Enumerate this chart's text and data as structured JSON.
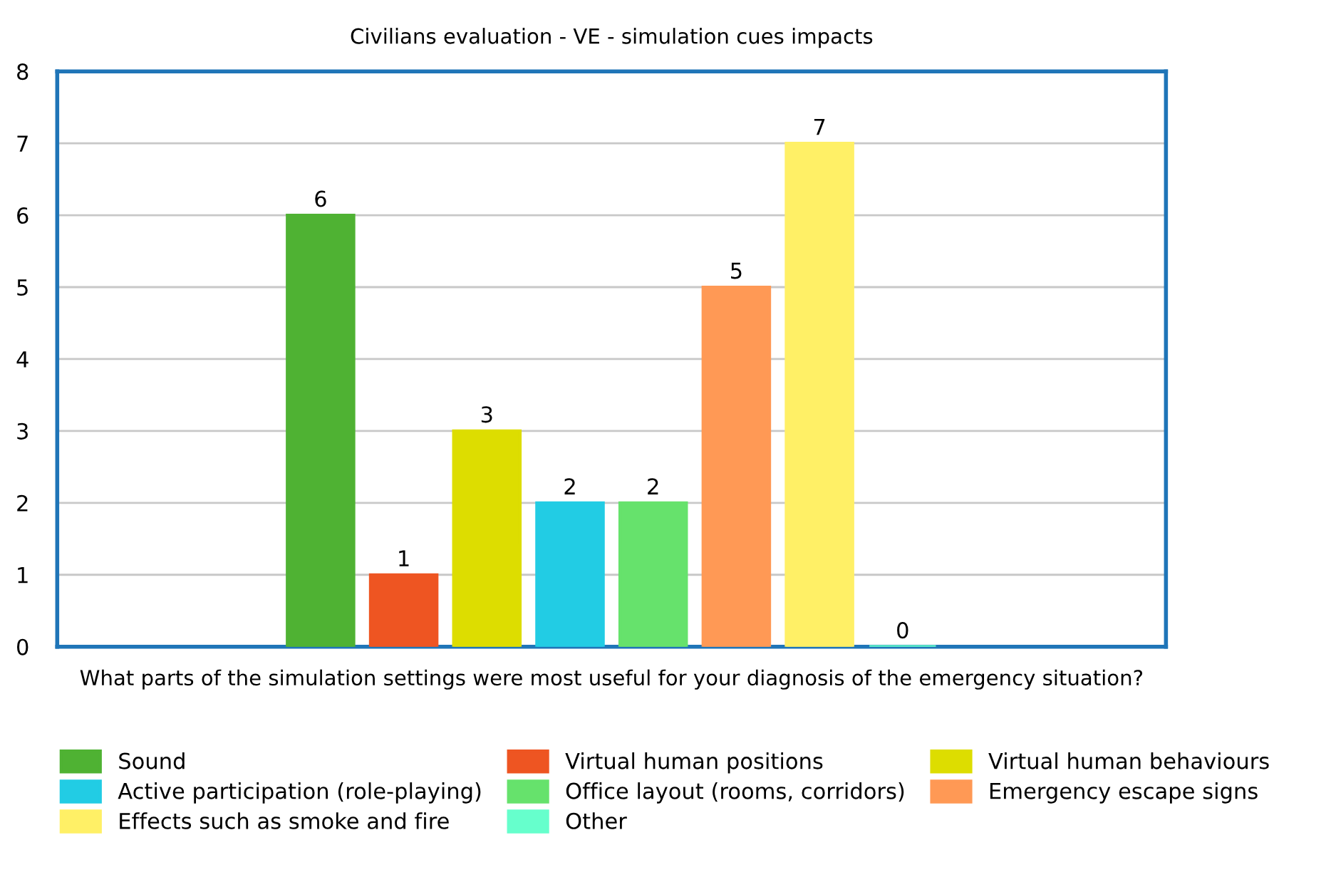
{
  "chart_data": {
    "type": "bar",
    "title": "Civilians evaluation - VE - simulation cues impacts",
    "xlabel": "What parts of the simulation settings were most useful for your diagnosis of the emergency situation?",
    "categories": [
      null
    ],
    "series": [
      {
        "name": "Sound",
        "color": "#4fb233",
        "values": [
          6
        ]
      },
      {
        "name": "Virtual human positions",
        "color": "#ee5522",
        "values": [
          1
        ]
      },
      {
        "name": "Virtual human behaviours",
        "color": "#dddd00",
        "values": [
          3
        ]
      },
      {
        "name": "Active participation (role-playing)",
        "color": "#22cce4",
        "values": [
          2
        ]
      },
      {
        "name": "Office layout (rooms, corridors)",
        "color": "#66e26c",
        "values": [
          2
        ]
      },
      {
        "name": "Emergency escape signs",
        "color": "#ff9955",
        "values": [
          5
        ]
      },
      {
        "name": "Effects such as smoke and fire",
        "color": "#fff066",
        "values": [
          7
        ]
      },
      {
        "name": "Other",
        "color": "#66ffcc",
        "values": [
          0
        ]
      }
    ],
    "ylim": [
      0,
      8
    ],
    "yticks": [
      0,
      1,
      2,
      3,
      4,
      5,
      6,
      7,
      8
    ],
    "grid": "y",
    "legend": "bottom",
    "data_labels": true
  }
}
